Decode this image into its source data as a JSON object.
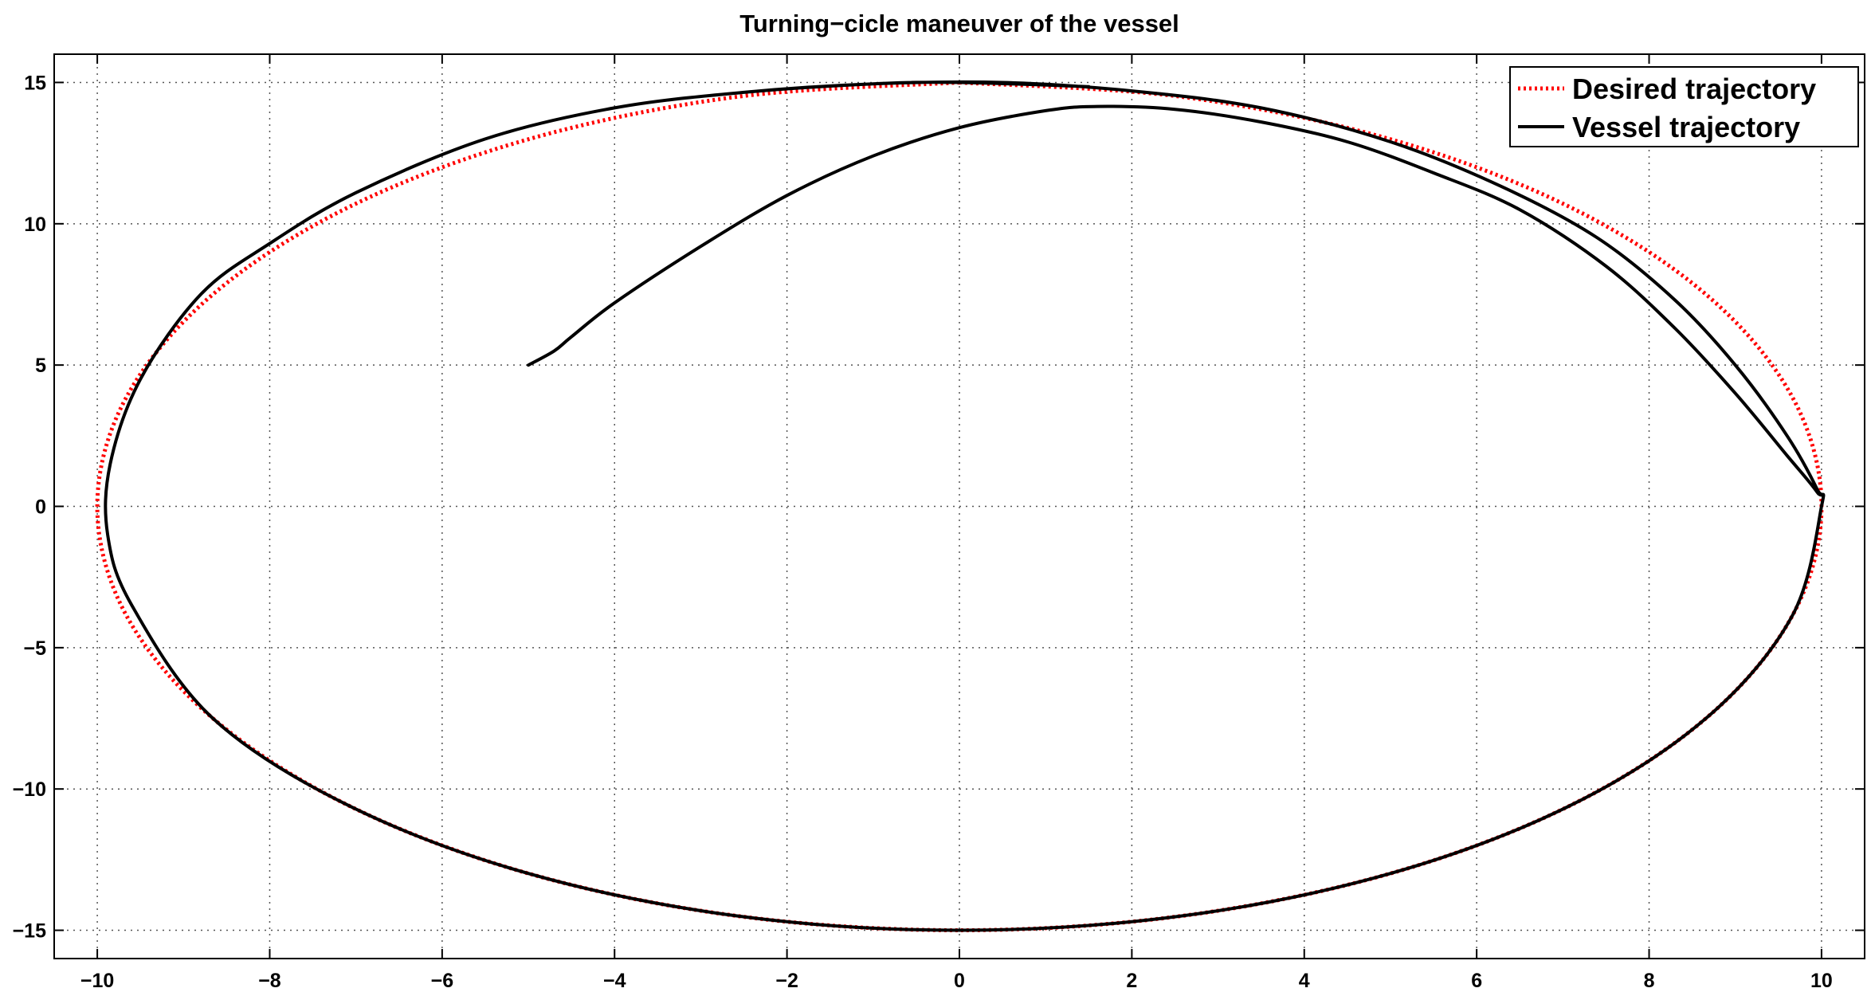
{
  "chart_data": {
    "type": "line",
    "title": "Turning−cicle maneuver of the vessel",
    "xlabel": "",
    "ylabel": "",
    "xlim": [
      -10.5,
      10.5
    ],
    "ylim": [
      -16,
      16
    ],
    "x_ticks": [
      -10,
      -8,
      -6,
      -4,
      -2,
      0,
      2,
      4,
      6,
      8,
      10
    ],
    "y_ticks": [
      -15,
      -10,
      -5,
      0,
      5,
      10,
      15
    ],
    "x_tick_labels": [
      "−10",
      "−8",
      "−6",
      "−4",
      "−2",
      "0",
      "2",
      "4",
      "6",
      "8",
      "10"
    ],
    "y_tick_labels": [
      "−15",
      "−10",
      "−5",
      "0",
      "5",
      "10",
      "15"
    ],
    "grid": true,
    "legend_position": "top-right",
    "series": [
      {
        "name": "Desired trajectory",
        "color": "#ff0000",
        "style": "dotted",
        "x": [
          0,
          2.588,
          5.0,
          7.071,
          8.66,
          9.659,
          10.0,
          9.659,
          8.66,
          7.071,
          5.0,
          2.588,
          0,
          -2.588,
          -5.0,
          -7.071,
          -8.66,
          -9.659,
          -10.0,
          -9.659,
          -8.66,
          -7.071,
          -5.0,
          -2.588,
          0
        ],
        "y": [
          15.0,
          14.489,
          12.99,
          10.607,
          7.5,
          3.882,
          0,
          -3.882,
          -7.5,
          -10.607,
          -12.99,
          -14.489,
          -15.0,
          -14.489,
          -12.99,
          -10.607,
          -7.5,
          -3.882,
          0,
          3.882,
          7.5,
          10.607,
          12.99,
          14.489,
          15.0
        ]
      },
      {
        "name": "Vessel trajectory",
        "color": "#000000",
        "style": "solid",
        "x": [
          -5.0,
          -4.7,
          -4.5,
          -4.0,
          -3.0,
          -2.0,
          -1.0,
          0.0,
          1.0,
          1.6,
          2.5,
          3.5,
          4.5,
          5.5,
          6.5,
          7.5,
          8.3,
          9.0,
          9.6,
          9.95,
          10.0,
          9.659,
          8.66,
          7.071,
          5.0,
          2.588,
          0,
          -2.588,
          -5.0,
          -7.071,
          -8.66,
          -9.6,
          -9.88,
          -9.85,
          -9.5,
          -8.8,
          -8.0,
          -7.0,
          -5.5,
          -4.0,
          -2.5,
          -1.0,
          0.5,
          2.0,
          3.5,
          5.0,
          6.3,
          7.4,
          8.3,
          9.0,
          9.6,
          9.95,
          10.0,
          9.659,
          8.66,
          7.071,
          5.0,
          2.588,
          0,
          -2.588,
          -5.0,
          -7.071,
          -8.66,
          -9.6,
          -9.88,
          -9.85,
          -9.5,
          -8.8,
          -8.0,
          -7.0,
          -5.5,
          -4.0,
          -2.5,
          -1.0,
          0.0,
          1.5
        ],
        "y": [
          5.0,
          5.5,
          6.0,
          7.2,
          9.2,
          11.0,
          12.4,
          13.4,
          14.0,
          14.15,
          14.05,
          13.6,
          12.9,
          11.8,
          10.5,
          8.5,
          6.3,
          4.0,
          1.8,
          0.5,
          0,
          -3.882,
          -7.5,
          -10.607,
          -12.99,
          -14.489,
          -15.0,
          -14.489,
          -12.99,
          -10.607,
          -7.5,
          -3.5,
          -1.0,
          1.5,
          4.5,
          7.5,
          9.3,
          11.1,
          13.0,
          14.1,
          14.65,
          14.95,
          15.0,
          14.7,
          14.1,
          12.9,
          11.3,
          9.5,
          7.3,
          5.0,
          2.5,
          0.6,
          0,
          -3.882,
          -7.5,
          -10.607,
          -12.99,
          -14.489,
          -15.0,
          -14.489,
          -12.99,
          -10.607,
          -7.5,
          -3.5,
          -1.0,
          1.5,
          4.5,
          7.5,
          9.3,
          11.1,
          13.0,
          14.1,
          14.65,
          14.95,
          15.0,
          14.85
        ]
      }
    ]
  }
}
